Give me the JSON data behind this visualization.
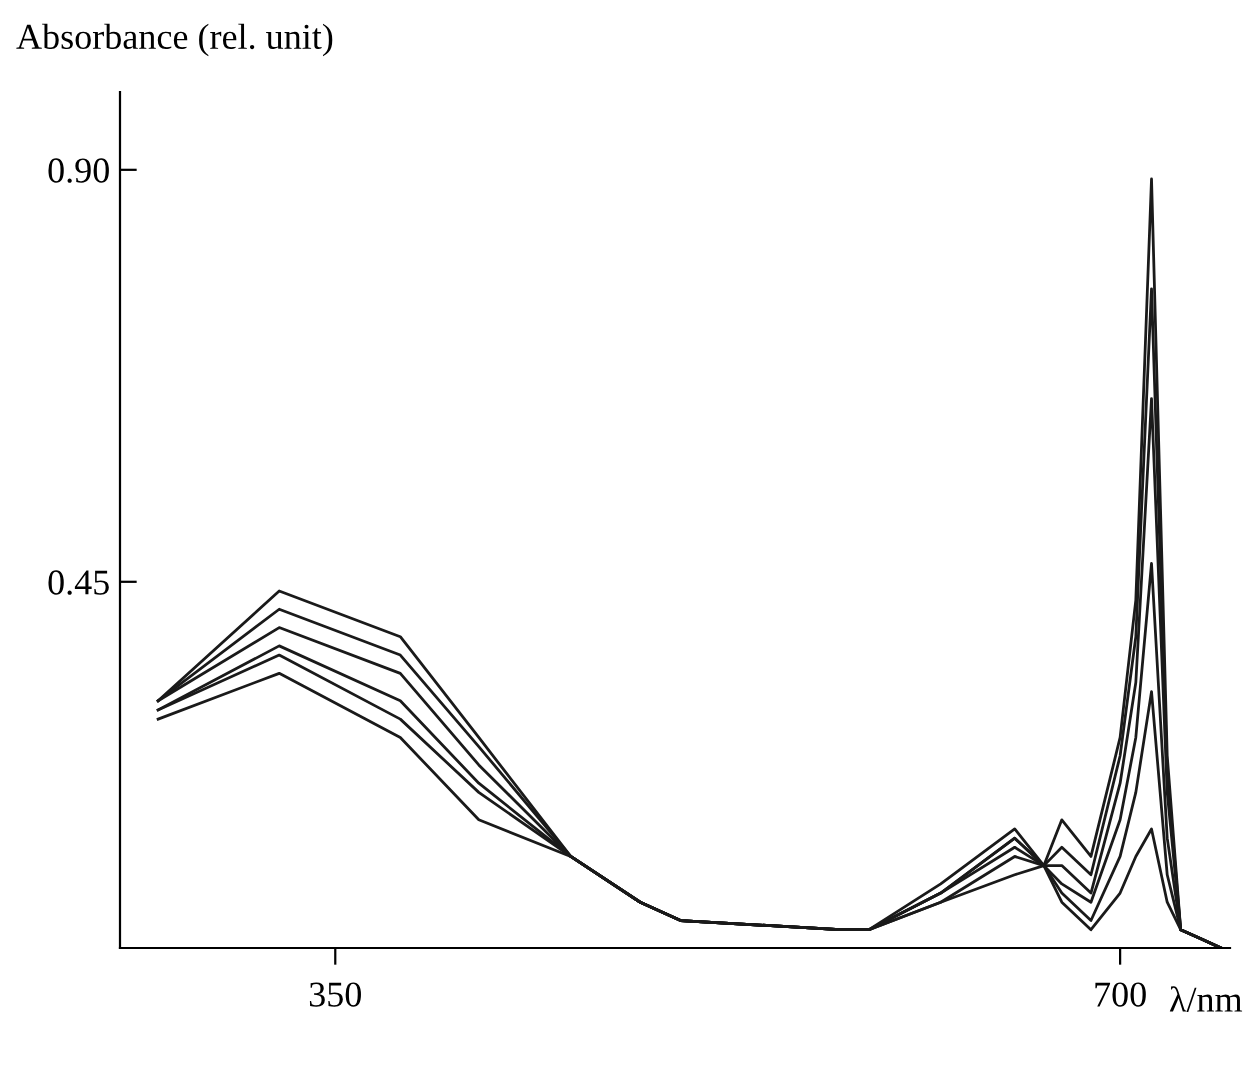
{
  "chart_data": {
    "type": "line",
    "ylabel": "Absorbance (rel. unit)",
    "xlabel": "λ/nm",
    "x": [
      271,
      325,
      379,
      414,
      455,
      486,
      504,
      575,
      588,
      620,
      653,
      666,
      674,
      687,
      700,
      707,
      714,
      721,
      727,
      736,
      745
    ],
    "series": [
      {
        "color": "#1a1a1a",
        "values": [
          0.32,
          0.44,
          0.39,
          0.28,
          0.15,
          0.1,
          0.08,
          0.07,
          0.07,
          0.1,
          0.13,
          0.14,
          0.19,
          0.15,
          0.28,
          0.43,
          0.89,
          0.26,
          0.07,
          0.06,
          0.05
        ]
      },
      {
        "color": "#1a1a1a",
        "values": [
          0.32,
          0.42,
          0.37,
          0.27,
          0.15,
          0.1,
          0.08,
          0.07,
          0.07,
          0.1,
          0.15,
          0.14,
          0.16,
          0.13,
          0.26,
          0.39,
          0.77,
          0.24,
          0.07,
          0.06,
          0.05
        ]
      },
      {
        "color": "#1a1a1a",
        "values": [
          0.32,
          0.4,
          0.35,
          0.25,
          0.15,
          0.1,
          0.08,
          0.07,
          0.07,
          0.11,
          0.16,
          0.14,
          0.14,
          0.11,
          0.23,
          0.34,
          0.65,
          0.22,
          0.07,
          0.06,
          0.05
        ]
      },
      {
        "color": "#1a1a1a",
        "values": [
          0.31,
          0.38,
          0.32,
          0.23,
          0.15,
          0.1,
          0.08,
          0.07,
          0.07,
          0.11,
          0.17,
          0.14,
          0.12,
          0.1,
          0.19,
          0.28,
          0.47,
          0.17,
          0.07,
          0.06,
          0.05
        ]
      },
      {
        "color": "#1a1a1a",
        "values": [
          0.31,
          0.37,
          0.3,
          0.22,
          0.15,
          0.1,
          0.08,
          0.07,
          0.07,
          0.11,
          0.17,
          0.14,
          0.11,
          0.08,
          0.15,
          0.22,
          0.33,
          0.13,
          0.07,
          0.06,
          0.05
        ]
      },
      {
        "color": "#1a1a1a",
        "values": [
          0.3,
          0.35,
          0.28,
          0.19,
          0.15,
          0.1,
          0.08,
          0.07,
          0.07,
          0.12,
          0.18,
          0.14,
          0.1,
          0.07,
          0.11,
          0.15,
          0.18,
          0.1,
          0.07,
          0.06,
          0.05
        ]
      }
    ],
    "xlim": [
      254,
      749
    ],
    "ylim": [
      0.05,
      0.985
    ],
    "xticks": [
      350,
      700
    ],
    "yticks": [
      {
        "value": 0.45,
        "label": "0.45"
      },
      {
        "value": 0.9,
        "label": "0.90"
      }
    ],
    "grid": false,
    "legend": false,
    "marker": "none",
    "line_style": "solid"
  }
}
